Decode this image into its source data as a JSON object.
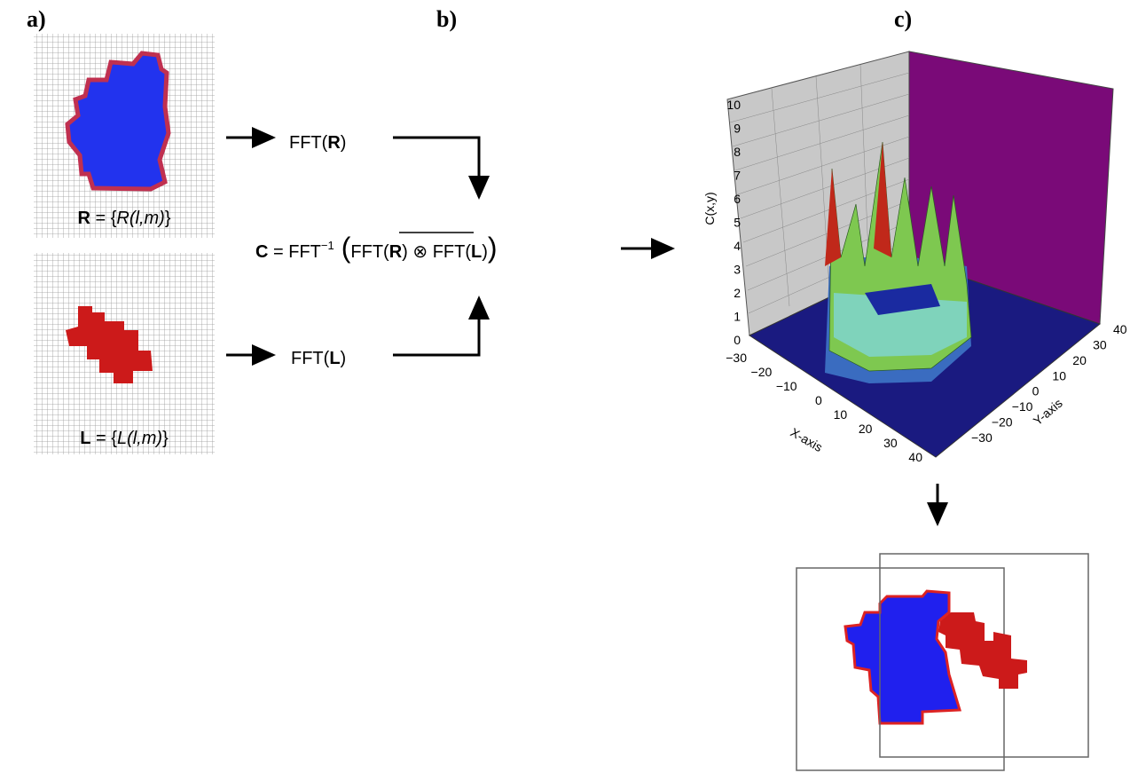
{
  "panels": {
    "a": "a)",
    "b": "b)",
    "c": "c)"
  },
  "receptor_label": {
    "bold": "R",
    "eq": " = {",
    "italic": "R(l,m)",
    "close": "}"
  },
  "ligand_label": {
    "bold": "L",
    "eq": " = {",
    "italic": "L(l,m)",
    "close": "}"
  },
  "fft_r": {
    "text": "FFT(",
    "bold": "R",
    "close": ")"
  },
  "fft_l": {
    "text": "FFT(",
    "bold": "L",
    "close": ")"
  },
  "formula": {
    "c": "C",
    "eq": " = FFT",
    "sup": "−1",
    "open": "(",
    "over1": "FFT(",
    "over_bold": "R",
    "over2": ")",
    "mid": " ⊗ FFT(",
    "bold2": "L",
    "close1": ")",
    "close2": ")"
  },
  "plot": {
    "z_label": "C(x,y)",
    "x_label": "X-axis",
    "y_label": "Y-axis",
    "z_ticks": [
      "0",
      "1",
      "2",
      "3",
      "4",
      "5",
      "6",
      "7",
      "8",
      "9",
      "10"
    ],
    "x_ticks": [
      "−30",
      "−20",
      "−10",
      "0",
      "10",
      "20",
      "30",
      "40"
    ],
    "y_ticks": [
      "−30",
      "−20",
      "−10",
      "0",
      "10",
      "20",
      "30",
      "40"
    ]
  }
}
